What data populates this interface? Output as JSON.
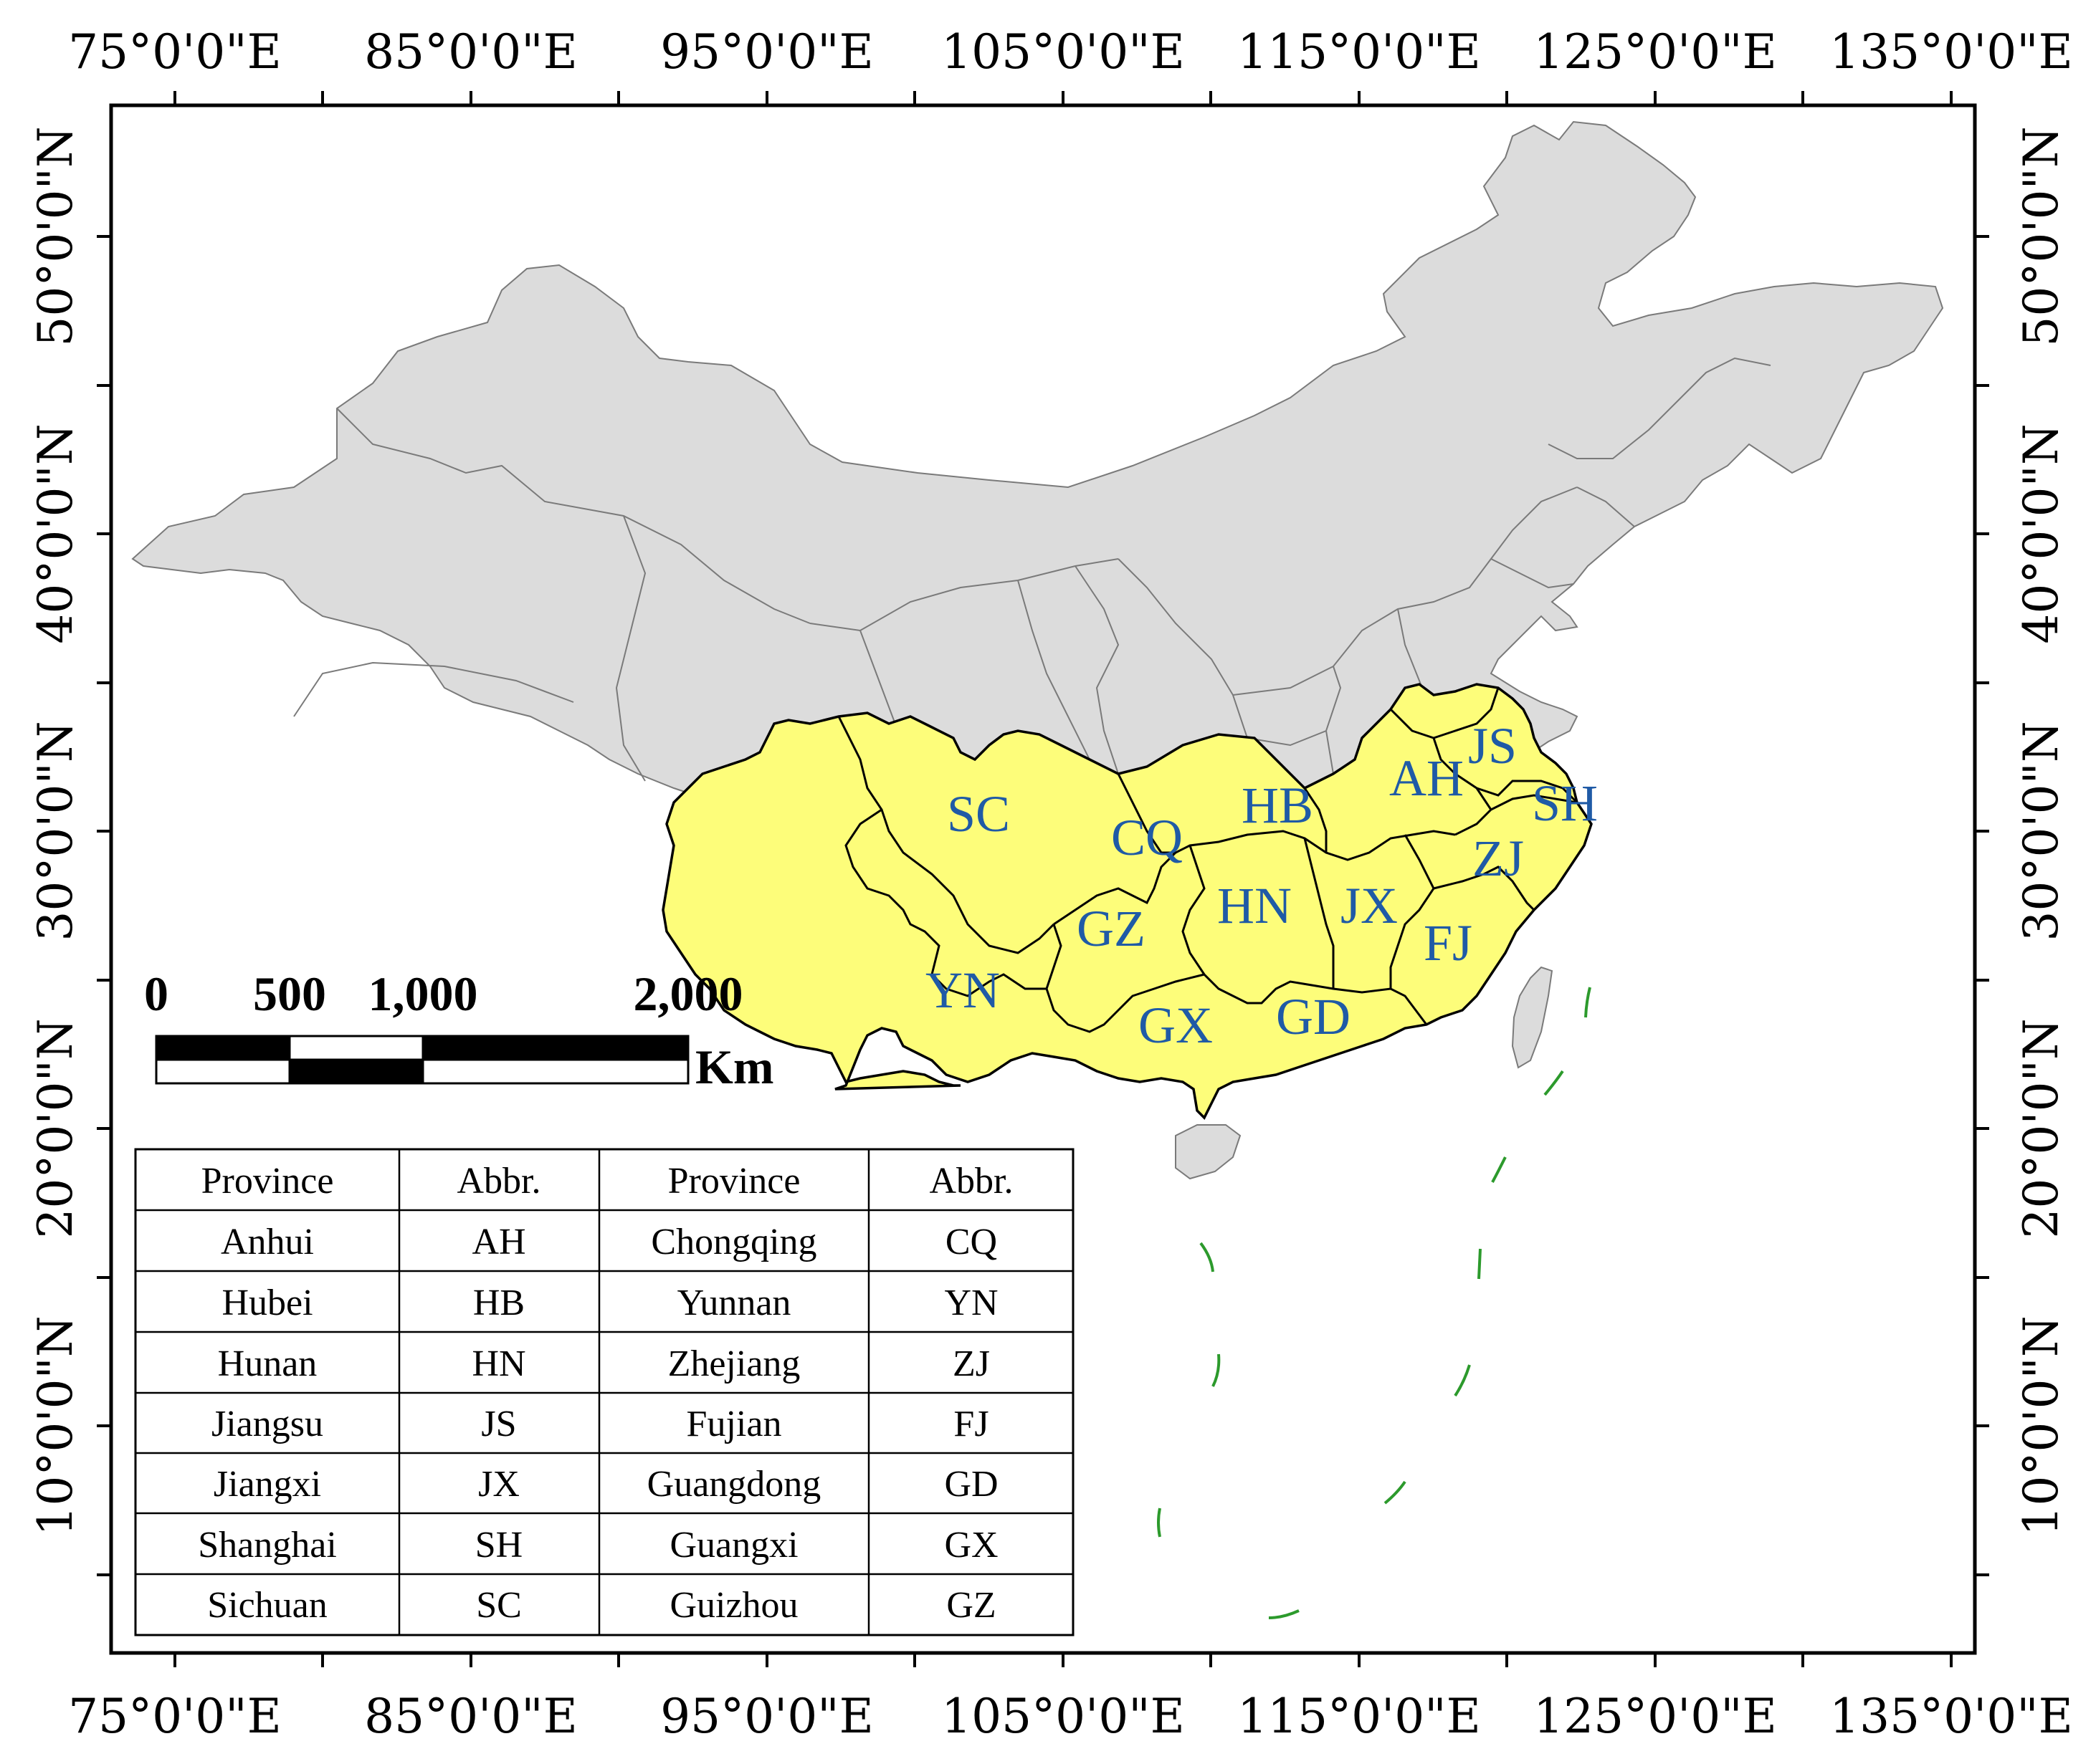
{
  "map": {
    "top_lon_labels": [
      "75°0'0\"E",
      "85°0'0\"E",
      "95°0'0\"E",
      "105°0'0\"E",
      "115°0'0\"E",
      "125°0'0\"E",
      "135°0'0\"E"
    ],
    "bottom_lon_labels": [
      "75°0'0\"E",
      "85°0'0\"E",
      "95°0'0\"E",
      "105°0'0\"E",
      "115°0'0\"E",
      "125°0'0\"E",
      "135°0'0\"E"
    ],
    "left_lat_labels": [
      "50°0'0\"N",
      "40°0'0\"N",
      "30°0'0\"N",
      "20°0'0\"N",
      "10°0'0\"N"
    ],
    "right_lat_labels": [
      "50°0'0\"N",
      "40°0'0\"N",
      "30°0'0\"N",
      "20°0'0\"N",
      "10°0'0\"N"
    ],
    "colors": {
      "study_area": "#fdfd7a",
      "other_area": "#dcdcdc",
      "label": "#1f5aa6",
      "dashed_line": "#2c9a2c"
    },
    "province_labels": [
      "SC",
      "CQ",
      "HB",
      "AH",
      "JS",
      "SH",
      "ZJ",
      "HN",
      "JX",
      "FJ",
      "GZ",
      "YN",
      "GX",
      "GD"
    ]
  },
  "scale_bar": {
    "ticks": [
      "0",
      "500",
      "1,000",
      "2,000"
    ],
    "unit": "Km"
  },
  "legend_table": {
    "headers": [
      "Province",
      "Abbr.",
      "Province",
      "Abbr."
    ],
    "rows": [
      [
        "Anhui",
        "AH",
        "Chongqing",
        "CQ"
      ],
      [
        "Hubei",
        "HB",
        "Yunnan",
        "YN"
      ],
      [
        "Hunan",
        "HN",
        "Zhejiang",
        "ZJ"
      ],
      [
        "Jiangsu",
        "JS",
        "Fujian",
        "FJ"
      ],
      [
        "Jiangxi",
        "JX",
        "Guangdong",
        "GD"
      ],
      [
        "Shanghai",
        "SH",
        "Guangxi",
        "GX"
      ],
      [
        "Sichuan",
        "SC",
        "Guizhou",
        "GZ"
      ]
    ]
  }
}
